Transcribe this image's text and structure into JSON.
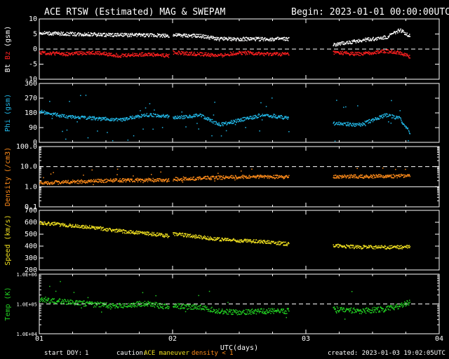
{
  "header": {
    "title": "ACE RTSW (Estimated) MAG & SWEPAM",
    "begin": "Begin: 2023-01-01 00:00:00UTC"
  },
  "footer": {
    "start_doy_label": "start DOY:",
    "start_doy_value": "1",
    "caution_label": "caution:",
    "caution_maneuver": "ACE maneuver",
    "caution_density": "density < 1",
    "created": "created: 2023-01-03 19:02:05UTC"
  },
  "colors": {
    "background": "#000000",
    "axes": "#ffffff",
    "bz": "#ff2020",
    "bt": "#ffffff",
    "phi": "#22b8e8",
    "density": "#ff8c1a",
    "speed": "#f0e020",
    "temp": "#22d022",
    "caution": "#f0e020"
  },
  "chart_data": {
    "type": "scatter",
    "x_axis": {
      "label": "UTC(days)",
      "range": [
        1,
        4
      ],
      "tick_labels": [
        "01",
        "02",
        "03",
        "04"
      ],
      "gaps": [
        [
          1.97,
          2.0
        ],
        [
          2.87,
          3.2
        ]
      ]
    },
    "panels": [
      {
        "id": "mag",
        "ylabel_parts": [
          "Bt",
          "Bz",
          "(gsm)"
        ],
        "ylim": [
          -10,
          10
        ],
        "scale": "linear",
        "ticks": [
          "10",
          "5",
          "0",
          "-5",
          "-10"
        ],
        "tick_values": [
          10,
          5,
          0,
          -5,
          -10
        ],
        "dashed_at": 0,
        "series": [
          {
            "name": "Bt",
            "color_key": "bt",
            "x": [
              1.0,
              1.2,
              1.4,
              1.6,
              1.8,
              1.97,
              2.0,
              2.2,
              2.35,
              2.5,
              2.7,
              2.87,
              3.2,
              3.4,
              3.6,
              3.7,
              3.78
            ],
            "y": [
              5.5,
              5.2,
              5.0,
              4.8,
              4.8,
              4.6,
              4.8,
              4.5,
              3.5,
              3.5,
              3.5,
              3.5,
              1.5,
              3.0,
              4.0,
              6.5,
              4.5
            ]
          },
          {
            "name": "Bz",
            "color_key": "bz",
            "x": [
              1.0,
              1.2,
              1.4,
              1.6,
              1.8,
              1.97,
              2.0,
              2.2,
              2.35,
              2.5,
              2.7,
              2.87,
              3.2,
              3.4,
              3.6,
              3.7,
              3.78
            ],
            "y": [
              -1.0,
              -1.5,
              -1.0,
              -2.0,
              -1.5,
              -2.0,
              -1.0,
              -1.5,
              -2.0,
              -1.0,
              -1.5,
              -1.5,
              -1.0,
              -1.5,
              -0.5,
              -1.0,
              -2.5
            ]
          }
        ]
      },
      {
        "id": "phi",
        "ylabel_parts": [
          "Phi (gsm)"
        ],
        "ylim": [
          0,
          360
        ],
        "scale": "linear",
        "ticks": [
          "360",
          "270",
          "180",
          "90",
          "0"
        ],
        "tick_values": [
          360,
          270,
          180,
          90,
          0
        ],
        "series": [
          {
            "name": "Phi",
            "color_key": "phi",
            "x": [
              1.0,
              1.2,
              1.4,
              1.6,
              1.8,
              1.97,
              2.0,
              2.2,
              2.35,
              2.5,
              2.7,
              2.87,
              3.2,
              3.4,
              3.6,
              3.7,
              3.78
            ],
            "y": [
              190,
              160,
              150,
              140,
              170,
              160,
              150,
              170,
              110,
              140,
              170,
              150,
              120,
              110,
              170,
              150,
              60
            ]
          }
        ]
      },
      {
        "id": "density",
        "ylabel_parts": [
          "Density (/cm3)"
        ],
        "ylim": [
          0.1,
          100
        ],
        "scale": "log",
        "ticks": [
          "100.0",
          "10.0",
          "1.0",
          "0.1"
        ],
        "tick_values": [
          100,
          10,
          1,
          0.1
        ],
        "dashed_at": 10,
        "solid_at": 1,
        "series": [
          {
            "name": "Density",
            "color_key": "density",
            "x": [
              1.0,
              1.2,
              1.4,
              1.6,
              1.8,
              1.97,
              2.0,
              2.2,
              2.35,
              2.5,
              2.7,
              2.87,
              3.2,
              3.4,
              3.6,
              3.7,
              3.78
            ],
            "y": [
              1.6,
              1.8,
              2.0,
              2.2,
              2.3,
              2.2,
              2.5,
              2.8,
              3.0,
              3.2,
              3.3,
              3.3,
              3.5,
              3.4,
              3.5,
              3.6,
              4.0
            ]
          }
        ]
      },
      {
        "id": "speed",
        "ylabel_parts": [
          "Speed (km/s)"
        ],
        "ylim": [
          200,
          700
        ],
        "scale": "linear",
        "ticks": [
          "700",
          "600",
          "500",
          "400",
          "300",
          "200"
        ],
        "tick_values": [
          700,
          600,
          500,
          400,
          300,
          200
        ],
        "series": [
          {
            "name": "Speed",
            "color_key": "speed",
            "x": [
              1.0,
              1.2,
              1.4,
              1.6,
              1.8,
              1.97,
              2.0,
              2.2,
              2.35,
              2.5,
              2.7,
              2.87,
              3.2,
              3.4,
              3.6,
              3.7,
              3.78
            ],
            "y": [
              600,
              580,
              560,
              530,
              510,
              490,
              510,
              480,
              460,
              450,
              440,
              420,
              410,
              395,
              395,
              395,
              400
            ]
          }
        ]
      },
      {
        "id": "temp",
        "ylabel_parts": [
          "Temp (K)"
        ],
        "ylim": [
          10000,
          1000000
        ],
        "scale": "log",
        "ticks": [
          "1.0E+06",
          "1.0E+05",
          "1.0E+04"
        ],
        "tick_values": [
          1000000,
          100000,
          10000
        ],
        "dashed_at": 100000,
        "series": [
          {
            "name": "Temp",
            "color_key": "temp",
            "x": [
              1.0,
              1.2,
              1.4,
              1.6,
              1.8,
              1.97,
              2.0,
              2.2,
              2.35,
              2.5,
              2.7,
              2.87,
              3.2,
              3.4,
              3.6,
              3.7,
              3.78
            ],
            "y": [
              150000,
              120000,
              100000,
              90000,
              110000,
              80000,
              90000,
              80000,
              60000,
              55000,
              60000,
              60000,
              70000,
              60000,
              70000,
              90000,
              120000
            ]
          }
        ]
      }
    ]
  }
}
